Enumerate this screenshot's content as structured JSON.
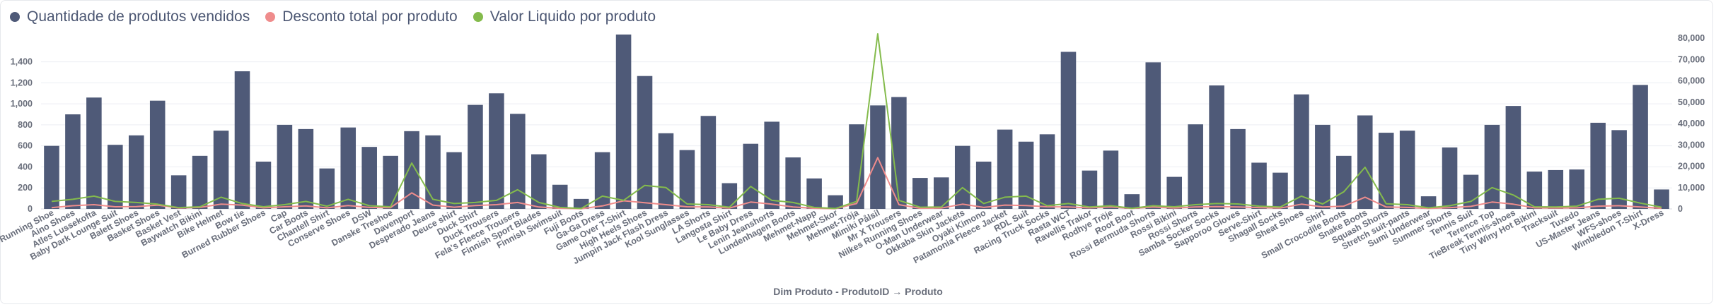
{
  "colors": {
    "quantidade": "#4f5a78",
    "desconto": "#ef8c8c",
    "valor": "#84bb4c",
    "grid": "#eceef2",
    "axis": "#696e7b"
  },
  "legend": [
    {
      "label": "Quantidade de produtos vendidos",
      "color": "#4f5a78"
    },
    {
      "label": "Desconto total por produto",
      "color": "#ef8c8c"
    },
    {
      "label": "Valor Liquido por produto",
      "color": "#84bb4c"
    }
  ],
  "chart_data": {
    "type": "bar",
    "xlabel": "Dim Produto - ProdutoID → Produto",
    "ylabel_left": "",
    "ylabel_right": "",
    "y_left_ticks": [
      0,
      200,
      400,
      600,
      800,
      1000,
      1200,
      1400
    ],
    "y_left_tick_labels": [
      "0",
      "200",
      "400",
      "600",
      "800",
      "1,000",
      "1,200",
      "1,400"
    ],
    "y_left_range": [
      0,
      1666
    ],
    "y_right_ticks": [
      0,
      10000,
      20000,
      30000,
      40000,
      50000,
      60000,
      70000,
      80000
    ],
    "y_right_tick_labels": [
      "0",
      "10,000",
      "20,000",
      "30,000",
      "40,000",
      "50,000",
      "60,000",
      "70,000",
      "80,000"
    ],
    "y_right_range": [
      0,
      82000
    ],
    "categories": [
      "Abhash Running Shoe",
      "Aino Shoes",
      "Atles Lussekofta",
      "Baby Dark Lounge Suit",
      "Balett Shoes",
      "Basket Shoes",
      "Basket Vest",
      "Baywatch Bikini",
      "Bike Helmet",
      "Bow tie",
      "Burned Rubber Shoes",
      "Cap",
      "Car Boots",
      "Chantell Shirt",
      "Conserve Shoes",
      "DSW",
      "Danske Treshoe",
      "Davenport",
      "Desperado Jeans",
      "Deuce shirt",
      "Duck Shirt",
      "Duck Trousers",
      "Fela's Fleece Trousers",
      "Finnish Sport Blades",
      "Finnish Swimsuit",
      "Fuji Boots",
      "Ga-Ga Dress",
      "Game Over T-Shirt",
      "High Heels Shoes",
      "Jumpin Jack Flash Dress",
      "Kool Sunglasses",
      "LA Shorts",
      "Langosta Shirt",
      "Le Baby Dress",
      "Lenin Jeanshorts",
      "Lundenhagen Boots",
      "Mehmet-Napp",
      "Mehmet-Skor",
      "Mehmet-Tröja",
      "Mimiki Pålsil",
      "Mr X Trousers",
      "Nilkes Running Shoes",
      "O-Man Underwear",
      "Okkaba Skin Jackets",
      "Oyaki Kimono",
      "Patamonia Fleece Jacket",
      "RDL Suit",
      "Racing Truck Socks",
      "Rasta WCT",
      "Ravellis Trakor",
      "Rodhye Tröje",
      "Root Boot",
      "Rossi Bermuda Shorts",
      "Rossi Bikini",
      "Rossi Shorts",
      "Samba Socker Socks",
      "Sapporoo Gloves",
      "Serve-Shirt",
      "Shagall Socks",
      "Sheat Shoes",
      "Shirt",
      "Small Crocodile Boots",
      "Snake Boots",
      "Squash Shorts",
      "Stretch suit-pants",
      "Sumi Underwear",
      "Summer Shorts",
      "Tennis Suit",
      "Terence Top",
      "TieBreak Tennis-shoes",
      "Tiny Winy Hot Bikini",
      "Tracksuit",
      "Tuxedo",
      "US-Master Jeans",
      "WFS-shoes",
      "Wimbledon T-Shirt",
      "X-Dress"
    ],
    "x_tick_labels": [
      "Abhash Running Shoe",
      "Aino Shoes",
      "Atles Lussekofta",
      "Baby Dark Lounge Suit",
      "Balett Shoes",
      "Basket Shoes",
      "Basket Vest",
      "Baywatch Bikini",
      "Bike Helmet",
      "Bow tie",
      "Burned Rubber Shoes",
      "Cap",
      "Car Boots",
      "Chantell Shirt",
      "Conserve Shoes",
      "DSW",
      "Danske Treshoe",
      "Davenport",
      "Desperado Jeans",
      "Deuce shirt",
      "Duck Shirt",
      "Duck Trousers",
      "Fela's Fleece Trousers",
      "Finnish Sport Blades",
      "Finnish Swimsuit",
      "Fuji Boots",
      "Ga-Ga Dress",
      "Game Over T-Shirt",
      "High Heels Shoes",
      "Jumpin Jack Flash Dress",
      "Kool Sunglasses",
      "LA Shorts",
      "Langosta Shirt",
      "Le Baby Dress",
      "Lenin Jeanshorts",
      "Lundenhagen Boots",
      "Mehmet-Napp",
      "Mehmet-Skor",
      "Mehmet-Tröja",
      "Mimiki Pålsil",
      "Mr X Trousers",
      "Nilkes Running Shoes",
      "O-Man Underwear",
      "Okkaba Skin Jackets",
      "Oyaki Kimono",
      "Patamonia Fleece Jacket",
      "RDL Suit",
      "Racing Truck Socks",
      "Rasta WCT",
      "Ravellis Trakor",
      "Rodhye Tröje",
      "Root Boot",
      "Rossi Bermuda Shorts",
      "Rossi Bikini",
      "Rossi Shorts",
      "Samba Socker Socks",
      "Sapporoo Gloves",
      "Serve-Shirt",
      "Shagall Socks",
      "Sheat Shoes",
      "Shirt",
      "Small Crocodile Boots",
      "Snake Boots",
      "Squash Shorts",
      "Stretch suit-pants",
      "Sumi Underwear",
      "Summer Shorts",
      "Tennis Suit",
      "Terence Top",
      "TieBreak Tennis-shoes",
      "Tiny Winy Hot Bikini",
      "Tracksuit",
      "Tuxedo",
      "US-Master Jeans",
      "WFS-shoes",
      "Wimbledon T-Shirt",
      "X-Dress"
    ],
    "series": [
      {
        "name": "Quantidade de produtos vendidos",
        "type": "bar",
        "axis": "left",
        "values": [
          600,
          900,
          1060,
          610,
          700,
          1030,
          320,
          505,
          745,
          1310,
          450,
          800,
          760,
          385,
          775,
          590,
          505,
          740,
          700,
          540,
          990,
          1100,
          905,
          520,
          230,
          95,
          540,
          1660,
          1265,
          720,
          560,
          885,
          245,
          620,
          830,
          490,
          290,
          130,
          805,
          985,
          1065,
          295,
          300,
          600,
          450,
          755,
          640,
          710,
          1495,
          365,
          555,
          140,
          1395,
          305,
          805,
          1175,
          760,
          440,
          345,
          1090,
          800,
          505,
          890,
          725,
          745,
          120,
          585,
          325,
          800,
          980,
          355,
          370,
          375,
          820,
          750,
          1180,
          185
        ]
      },
      {
        "name": "Desconto total por produto",
        "type": "line",
        "axis": "right",
        "values": [
          600,
          1500,
          2000,
          1000,
          1100,
          1800,
          400,
          700,
          2200,
          1800,
          500,
          1000,
          1400,
          500,
          1600,
          700,
          600,
          7500,
          1800,
          800,
          1600,
          2000,
          3000,
          900,
          300,
          100,
          1400,
          3800,
          2900,
          2000,
          1000,
          900,
          400,
          3200,
          2200,
          900,
          300,
          100,
          2500,
          24000,
          2000,
          300,
          400,
          2200,
          700,
          1800,
          1600,
          1000,
          900,
          500,
          900,
          200,
          900,
          400,
          900,
          1100,
          900,
          600,
          400,
          2200,
          900,
          1300,
          5500,
          900,
          700,
          200,
          600,
          1200,
          3200,
          2200,
          500,
          400,
          500,
          1300,
          1500,
          900,
          300
        ]
      },
      {
        "name": "Valor Liquido por produto",
        "type": "line",
        "axis": "right",
        "values": [
          3500,
          4500,
          6000,
          3500,
          3000,
          2200,
          600,
          1000,
          5500,
          2500,
          1000,
          2000,
          3500,
          1300,
          4500,
          1500,
          1000,
          21500,
          4500,
          2500,
          3000,
          4000,
          9000,
          3000,
          700,
          200,
          6000,
          4000,
          11000,
          10000,
          2300,
          2000,
          800,
          10500,
          4000,
          3000,
          700,
          200,
          3500,
          82000,
          4000,
          800,
          900,
          10000,
          2500,
          5500,
          6000,
          1500,
          2500,
          900,
          1500,
          300,
          1500,
          1000,
          2000,
          2500,
          2300,
          1300,
          900,
          6000,
          2300,
          8000,
          19500,
          2400,
          2000,
          500,
          1500,
          3500,
          10000,
          6500,
          1000,
          900,
          1300,
          4500,
          5000,
          2700,
          800
        ]
      }
    ],
    "grid": true,
    "legend_position": "top-left"
  }
}
